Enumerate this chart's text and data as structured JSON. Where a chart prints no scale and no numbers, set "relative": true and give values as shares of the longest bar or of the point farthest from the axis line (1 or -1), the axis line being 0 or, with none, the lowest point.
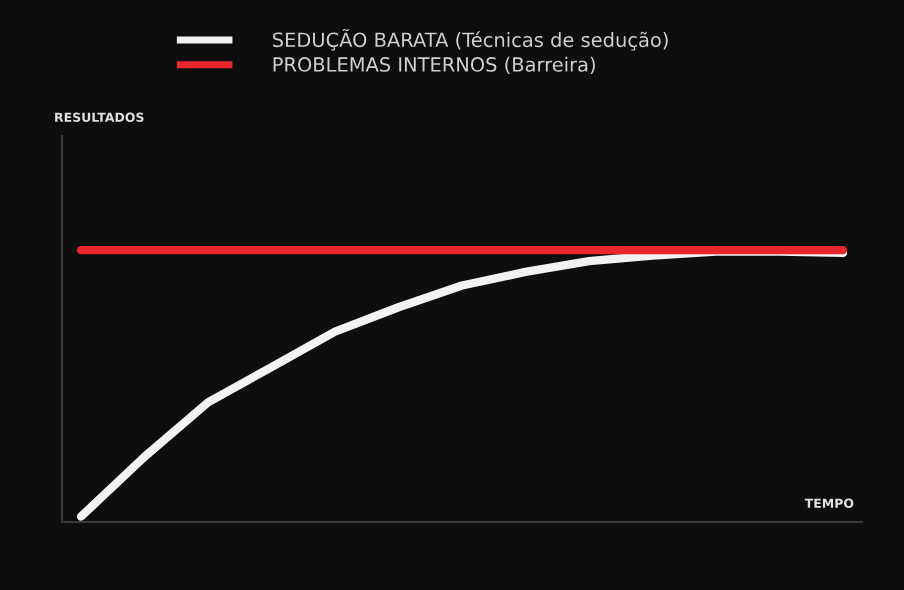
{
  "chart_data": {
    "type": "line",
    "relative": true,
    "xlabel": "TEMPO",
    "annotations": [
      "RESULTADOS"
    ],
    "categories": [
      null,
      null,
      null,
      null,
      null,
      null,
      null,
      null,
      null,
      null,
      null,
      null,
      null
    ],
    "series": [
      {
        "name": "SEDUÇÃO BARATA (Técnicas de sedução)",
        "color": "#f2f2f2",
        "values": [
          0.02,
          0.24,
          0.44,
          0.57,
          0.7,
          0.79,
          0.87,
          0.92,
          0.96,
          0.98,
          0.995,
          0.995,
          0.99
        ]
      },
      {
        "name": "PROBLEMAS INTERNOS (Barreira)",
        "color": "#e8262b",
        "values": [
          1,
          1,
          1,
          1,
          1,
          1,
          1,
          1,
          1,
          1,
          1,
          1,
          1
        ]
      }
    ],
    "legend": "top",
    "grid": false,
    "marker": "none",
    "line_style": "solid"
  }
}
